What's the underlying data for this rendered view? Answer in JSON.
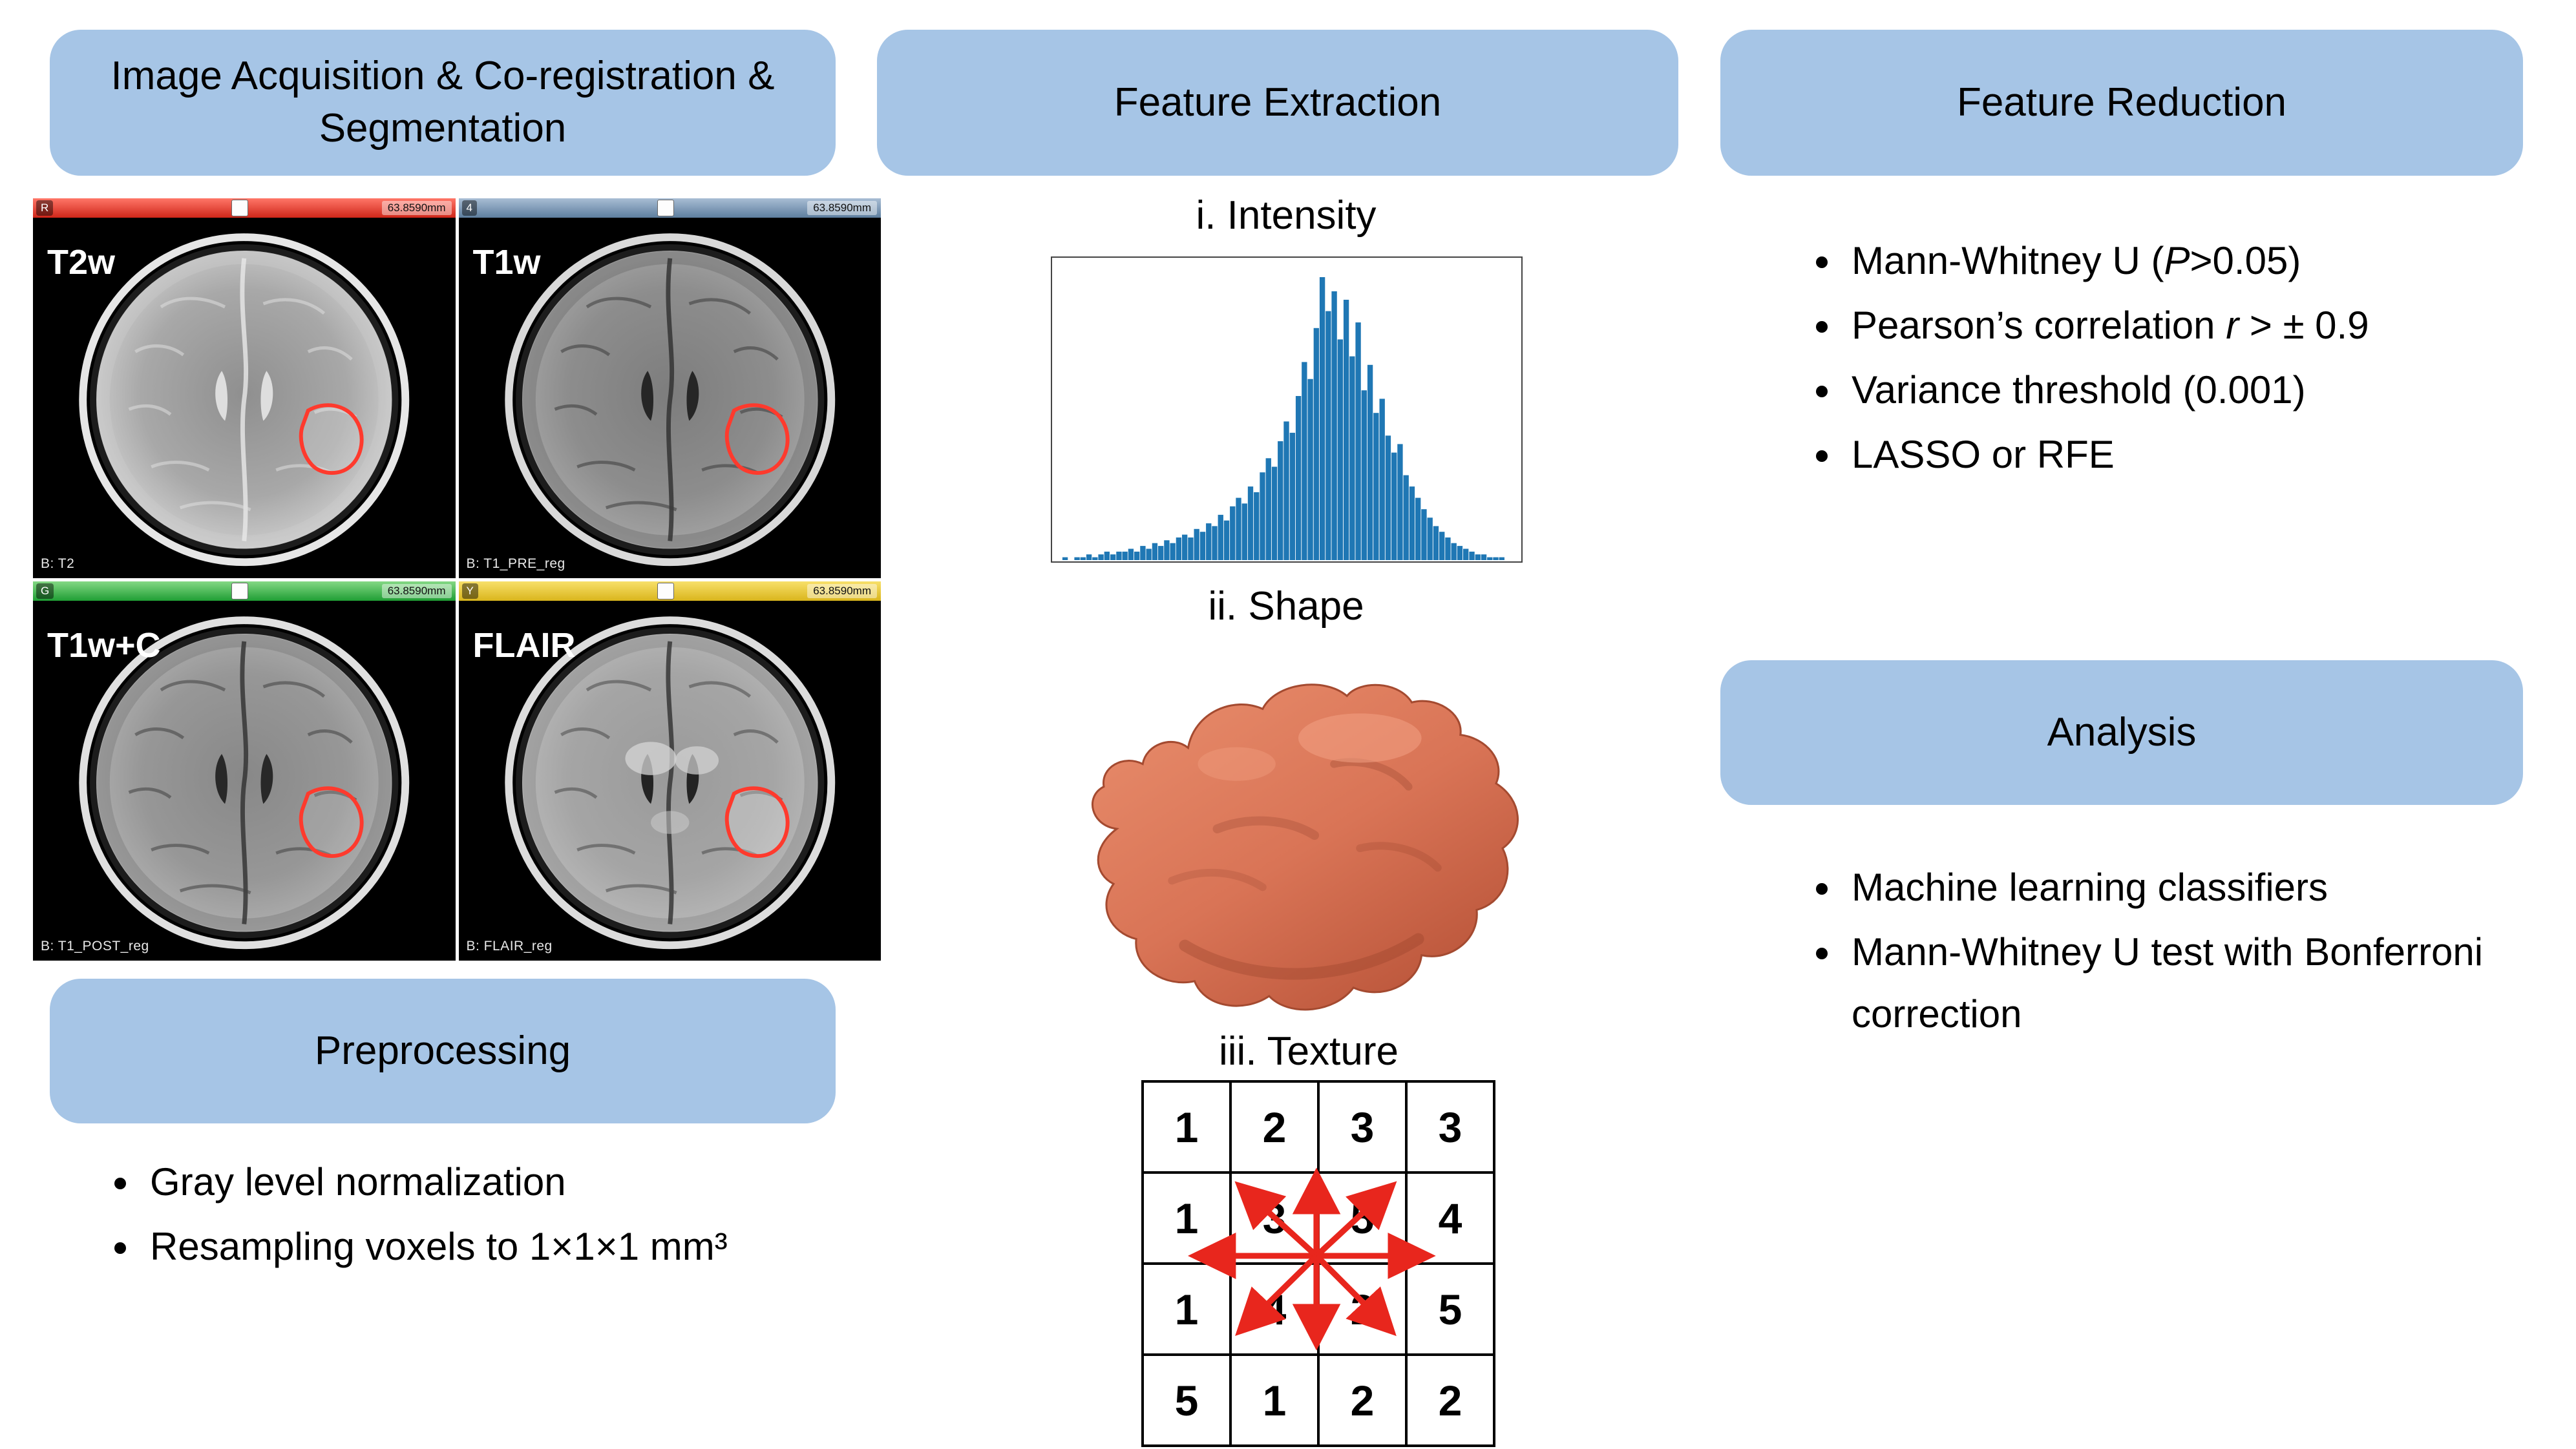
{
  "colors": {
    "box_blue": "#a6c5e6",
    "histogram_blue": "#1f77b4",
    "tumor_salmon": "#d97456",
    "arrow_red": "#e8261d",
    "roi_outline_red": "#ff3a2d"
  },
  "left": {
    "acquisition_title": "Image Acquisition & Co-registration & Segmentation",
    "panels": [
      {
        "label": "T2w",
        "series": "B: T2",
        "chip": "R",
        "ruler": "63.8590mm"
      },
      {
        "label": "T1w",
        "series": "B: T1_PRE_reg",
        "chip": "4",
        "ruler": "63.8590mm"
      },
      {
        "label": "T1w+C",
        "series": "B: T1_POST_reg",
        "chip": "G",
        "ruler": "63.8590mm"
      },
      {
        "label": "FLAIR",
        "series": "B: FLAIR_reg",
        "chip": "Y",
        "ruler": "63.8590mm"
      }
    ],
    "preprocessing_title": "Preprocessing",
    "preprocessing_bullets": [
      [
        {
          "t": "Gray level normalization"
        }
      ],
      [
        {
          "t": "Resampling voxels to 1×1×1 mm³"
        }
      ]
    ]
  },
  "middle": {
    "title": "Feature Extraction",
    "intensity_label": "i. Intensity",
    "shape_label": "ii. Shape",
    "texture_label": "iii. Texture",
    "texture_grid": [
      [
        1,
        2,
        3,
        3
      ],
      [
        1,
        3,
        5,
        4
      ],
      [
        1,
        4,
        2,
        5
      ],
      [
        5,
        1,
        2,
        2
      ]
    ]
  },
  "right": {
    "reduction_title": "Feature Reduction",
    "reduction_bullets": [
      [
        {
          "t": "Mann-Whitney U ("
        },
        {
          "t": "P",
          "i": true
        },
        {
          "t": ">0.05)"
        }
      ],
      [
        {
          "t": "Pearson’s correlation "
        },
        {
          "t": "r",
          "i": true
        },
        {
          "t": " > ± 0.9"
        }
      ],
      [
        {
          "t": "Variance threshold (0.001)"
        }
      ],
      [
        {
          "t": "LASSO or RFE"
        }
      ]
    ],
    "analysis_title": "Analysis",
    "analysis_bullets": [
      [
        {
          "t": "Machine learning classifiers"
        }
      ],
      [
        {
          "t": "Mann-Whitney U test with Bonferroni correction"
        }
      ]
    ]
  },
  "chart_data": {
    "type": "bar",
    "title": "Intensity histogram",
    "xlabel": "",
    "ylabel": "",
    "legend": "none",
    "axes_labeled": false,
    "n_bins": 75,
    "values": [
      1,
      0,
      1,
      1,
      2,
      1,
      2,
      3,
      2,
      3,
      3,
      4,
      3,
      5,
      4,
      6,
      5,
      7,
      6,
      8,
      9,
      8,
      11,
      10,
      13,
      12,
      16,
      14,
      19,
      22,
      20,
      26,
      24,
      31,
      36,
      33,
      42,
      49,
      45,
      58,
      70,
      64,
      82,
      100,
      88,
      95,
      78,
      92,
      72,
      84,
      60,
      69,
      52,
      57,
      44,
      38,
      41,
      30,
      26,
      22,
      18,
      15,
      12,
      10,
      8,
      6,
      5,
      4,
      3,
      2,
      2,
      1,
      1,
      1,
      0
    ]
  }
}
